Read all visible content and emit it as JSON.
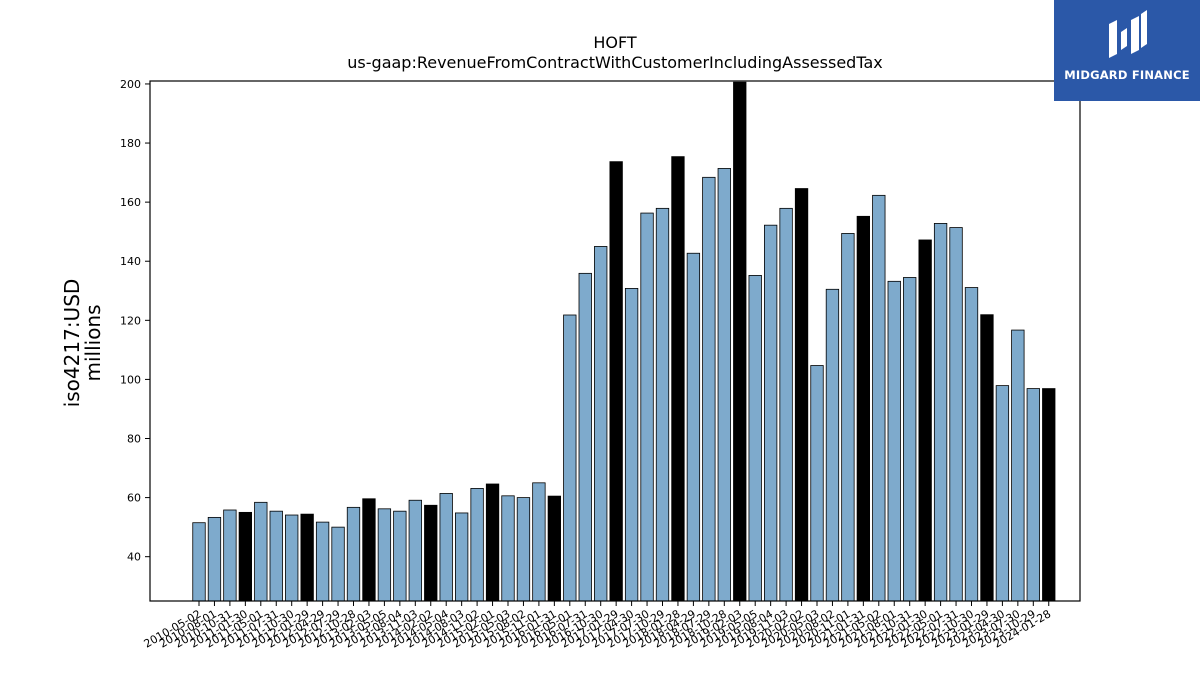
{
  "logo": {
    "text": "MIDGARD FINANCE",
    "icon": "midgard-m-logo-icon",
    "bg_color": "#2b58a8"
  },
  "chart_data": {
    "type": "bar",
    "title": "HOFT",
    "subtitle": "us-gaap:RevenueFromContractWithCustomerIncludingAssessedTax",
    "ylabel_line1": "iso4217:USD",
    "ylabel_line2": "millions",
    "ylim": [
      25,
      201
    ],
    "yticks": [
      40,
      60,
      80,
      100,
      120,
      140,
      160,
      180,
      200
    ],
    "grid": false,
    "colors": {
      "quarter": "#7eaacc",
      "annual": "#000000"
    },
    "x_labels": [
      "2010-05-02",
      "2010-08-01",
      "2010-10-31",
      "2011-01-30",
      "2011-05-01",
      "2011-07-31",
      "2011-10-30",
      "2012-01-29",
      "2012-04-29",
      "2012-07-29",
      "2012-10-28",
      "2013-02-03",
      "2013-05-05",
      "2013-08-04",
      "2013-11-03",
      "2014-02-02",
      "2014-05-04",
      "2014-08-03",
      "2014-11-02",
      "2015-02-01",
      "2015-05-03",
      "2015-08-02",
      "2015-11-01",
      "2016-01-31",
      "2016-05-01",
      "2016-07-31",
      "2016-10-30",
      "2017-01-29",
      "2017-04-30",
      "2017-07-30",
      "2017-10-29",
      "2018-01-28",
      "2018-04-29",
      "2018-07-29",
      "2018-10-28",
      "2019-02-03",
      "2019-05-05",
      "2019-08-04",
      "2019-11-03",
      "2020-02-02",
      "2020-05-03",
      "2020-08-02",
      "2020-11-01",
      "2021-01-31",
      "2021-05-02",
      "2021-08-01",
      "2021-10-31",
      "2022-01-30",
      "2022-05-01",
      "2022-07-31",
      "2022-10-30",
      "2023-01-29",
      "2023-04-30",
      "2023-07-30",
      "2023-10-29",
      "2024-01-28"
    ],
    "values": [
      51.5,
      53.3,
      55.8,
      55.0,
      58.4,
      55.4,
      54.1,
      54.4,
      51.7,
      50.0,
      56.7,
      59.6,
      56.2,
      55.4,
      59.1,
      57.4,
      61.4,
      54.8,
      63.1,
      64.6,
      60.6,
      60.0,
      65.0,
      60.5,
      121.8,
      135.9,
      145.0,
      173.7,
      130.8,
      156.3,
      157.9,
      175.4,
      142.7,
      168.4,
      171.4,
      200.6,
      135.2,
      152.2,
      157.9,
      164.6,
      104.7,
      130.5,
      149.4,
      155.2,
      162.3,
      133.2,
      134.5,
      147.2,
      152.8,
      151.4,
      131.1,
      121.9,
      97.9,
      116.7,
      96.9,
      96.9
    ],
    "annual_flags": [
      false,
      false,
      false,
      true,
      false,
      false,
      false,
      true,
      false,
      false,
      false,
      true,
      false,
      false,
      false,
      true,
      false,
      false,
      false,
      true,
      false,
      false,
      false,
      true,
      false,
      false,
      false,
      true,
      false,
      false,
      false,
      true,
      false,
      false,
      false,
      true,
      false,
      false,
      false,
      true,
      false,
      false,
      false,
      true,
      false,
      false,
      false,
      true,
      false,
      false,
      false,
      true,
      false,
      false,
      false,
      true
    ]
  }
}
